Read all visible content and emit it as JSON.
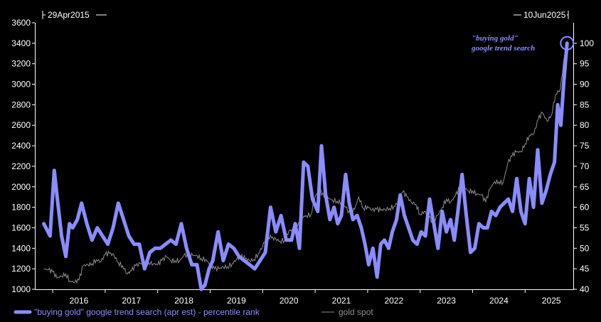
{
  "chart_data": {
    "type": "line",
    "start_label": "29Apr2015",
    "end_label": "10Jun2025",
    "x_ticks": [
      "2016",
      "2017",
      "2018",
      "2019",
      "2020",
      "2021",
      "2022",
      "2023",
      "2024",
      "2025"
    ],
    "left_axis": {
      "ticks": [
        1000,
        1200,
        1400,
        1600,
        1800,
        2000,
        2200,
        2400,
        2600,
        2800,
        3000,
        3200,
        3400,
        3600
      ],
      "range": [
        1000,
        3600
      ]
    },
    "right_axis": {
      "ticks": [
        40,
        45,
        50,
        55,
        60,
        65,
        70,
        75,
        80,
        85,
        90,
        95,
        100
      ],
      "range": [
        40,
        105
      ]
    },
    "annotation": {
      "line1": "\"buying gold\"",
      "line2": "google trend search"
    },
    "colors": {
      "trend": "#8a8cff",
      "gold": "#8c8c8c",
      "axis": "#ffffff",
      "background": "#000000"
    },
    "series": [
      {
        "name": "\"buying gold\" google trend search (apr est) - percentile rank",
        "axis": "right",
        "x": [
          2015.33,
          2015.45,
          2015.53,
          2015.58,
          2015.67,
          2015.75,
          2015.82,
          2015.88,
          2015.97,
          2016.05,
          2016.15,
          2016.25,
          2016.35,
          2016.45,
          2016.55,
          2016.65,
          2016.75,
          2016.85,
          2016.95,
          2017.05,
          2017.15,
          2017.25,
          2017.35,
          2017.45,
          2017.55,
          2017.65,
          2017.75,
          2017.85,
          2017.95,
          2018.05,
          2018.15,
          2018.25,
          2018.33,
          2018.4,
          2018.48,
          2018.55,
          2018.65,
          2018.75,
          2018.85,
          2018.95,
          2019.05,
          2019.15,
          2019.25,
          2019.35,
          2019.45,
          2019.55,
          2019.65,
          2019.75,
          2019.85,
          2019.95,
          2020.05,
          2020.12,
          2020.2,
          2020.28,
          2020.36,
          2020.45,
          2020.55,
          2020.62,
          2020.7,
          2020.78,
          2020.86,
          2020.93,
          2021.0,
          2021.08,
          2021.15,
          2021.22,
          2021.3,
          2021.38,
          2021.45,
          2021.52,
          2021.6,
          2021.68,
          2021.75,
          2021.82,
          2021.9,
          2021.97,
          2022.05,
          2022.12,
          2022.2,
          2022.28,
          2022.36,
          2022.44,
          2022.52,
          2022.6,
          2022.68,
          2022.76,
          2022.84,
          2022.92,
          2023.0,
          2023.08,
          2023.15,
          2023.22,
          2023.3,
          2023.38,
          2023.46,
          2023.54,
          2023.62,
          2023.7,
          2023.78,
          2023.86,
          2023.94,
          2024.02,
          2024.1,
          2024.18,
          2024.26,
          2024.34,
          2024.42,
          2024.5,
          2024.58,
          2024.66,
          2024.74,
          2024.82,
          2024.9,
          2024.98,
          2025.06,
          2025.12,
          2025.18,
          2025.24,
          2025.3
        ],
        "y": [
          56,
          53,
          69,
          63,
          53,
          48,
          56,
          55,
          57,
          61,
          56,
          52,
          55,
          53,
          51,
          55,
          61,
          57,
          53,
          51,
          51,
          45,
          49,
          50,
          50,
          51,
          52,
          51,
          56,
          50,
          46,
          46,
          40,
          41,
          45,
          47,
          54,
          47,
          51,
          50,
          48,
          47,
          46,
          45,
          47,
          49,
          60,
          54,
          58,
          52,
          52,
          56,
          50,
          71,
          70,
          62,
          59,
          75,
          63,
          57,
          60,
          56,
          58,
          68,
          61,
          57,
          58,
          55,
          51,
          46,
          50,
          43,
          51,
          52,
          50,
          54,
          57,
          63,
          58,
          55,
          52,
          51,
          54,
          53,
          62,
          56,
          50,
          59,
          54,
          57,
          52,
          59,
          68,
          58,
          49,
          50,
          56,
          55,
          55,
          59,
          58,
          60,
          61,
          62,
          59,
          67,
          59,
          56,
          67,
          60,
          74,
          61,
          64,
          68,
          71,
          85,
          80,
          91,
          100
        ]
      },
      {
        "name": "gold spot",
        "axis": "left",
        "x": [
          2015.33,
          2015.42,
          2015.5,
          2015.58,
          2015.67,
          2015.75,
          2015.83,
          2015.92,
          2016.0,
          2016.08,
          2016.17,
          2016.25,
          2016.33,
          2016.42,
          2016.5,
          2016.58,
          2016.67,
          2016.75,
          2016.83,
          2016.92,
          2017.0,
          2017.08,
          2017.17,
          2017.25,
          2017.33,
          2017.42,
          2017.5,
          2017.58,
          2017.67,
          2017.75,
          2017.83,
          2017.92,
          2018.0,
          2018.08,
          2018.17,
          2018.25,
          2018.33,
          2018.42,
          2018.5,
          2018.58,
          2018.67,
          2018.75,
          2018.83,
          2018.92,
          2019.0,
          2019.08,
          2019.17,
          2019.25,
          2019.33,
          2019.42,
          2019.5,
          2019.58,
          2019.67,
          2019.75,
          2019.83,
          2019.92,
          2020.0,
          2020.08,
          2020.17,
          2020.25,
          2020.33,
          2020.42,
          2020.5,
          2020.58,
          2020.67,
          2020.75,
          2020.83,
          2020.92,
          2021.0,
          2021.08,
          2021.17,
          2021.25,
          2021.33,
          2021.42,
          2021.5,
          2021.58,
          2021.67,
          2021.75,
          2021.83,
          2021.92,
          2022.0,
          2022.08,
          2022.17,
          2022.25,
          2022.33,
          2022.42,
          2022.5,
          2022.58,
          2022.67,
          2022.75,
          2022.83,
          2022.92,
          2023.0,
          2023.08,
          2023.17,
          2023.25,
          2023.33,
          2023.42,
          2023.5,
          2023.58,
          2023.67,
          2023.75,
          2023.83,
          2023.92,
          2024.0,
          2024.08,
          2024.17,
          2024.25,
          2024.33,
          2024.42,
          2024.5,
          2024.58,
          2024.67,
          2024.75,
          2024.83,
          2024.92,
          2025.0,
          2025.08,
          2025.17,
          2025.25,
          2025.3
        ],
        "y": [
          1200,
          1190,
          1170,
          1110,
          1130,
          1150,
          1080,
          1070,
          1090,
          1230,
          1240,
          1250,
          1290,
          1270,
          1340,
          1350,
          1330,
          1260,
          1230,
          1150,
          1180,
          1230,
          1250,
          1270,
          1260,
          1250,
          1240,
          1280,
          1320,
          1280,
          1280,
          1280,
          1330,
          1330,
          1330,
          1330,
          1300,
          1290,
          1240,
          1200,
          1200,
          1220,
          1220,
          1250,
          1290,
          1320,
          1300,
          1280,
          1290,
          1350,
          1420,
          1520,
          1500,
          1490,
          1470,
          1480,
          1570,
          1580,
          1620,
          1700,
          1720,
          1730,
          1900,
          1980,
          1900,
          1890,
          1870,
          1860,
          1850,
          1800,
          1730,
          1780,
          1900,
          1790,
          1810,
          1770,
          1780,
          1770,
          1780,
          1790,
          1810,
          1850,
          1950,
          1900,
          1850,
          1830,
          1730,
          1760,
          1700,
          1650,
          1720,
          1800,
          1880,
          1850,
          1910,
          1990,
          2000,
          1960,
          1960,
          1930,
          1920,
          1850,
          1980,
          2050,
          2050,
          2040,
          2230,
          2300,
          2340,
          2340,
          2420,
          2500,
          2520,
          2660,
          2720,
          2640,
          2700,
          2900,
          2950,
          3280,
          3300
        ]
      }
    ]
  }
}
